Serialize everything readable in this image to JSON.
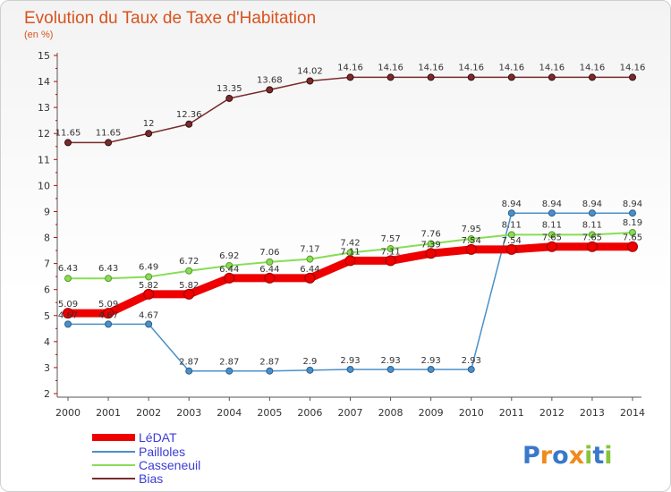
{
  "chart_data": {
    "type": "line",
    "title": "Evolution du Taux de Taxe d'Habitation",
    "subtitle": "(en %)",
    "x": [
      "2000",
      "2001",
      "2002",
      "2003",
      "2004",
      "2005",
      "2006",
      "2007",
      "2008",
      "2009",
      "2010",
      "2011",
      "2012",
      "2013",
      "2014"
    ],
    "ylim": [
      2,
      15
    ],
    "yticks": [
      2,
      3,
      4,
      5,
      6,
      7,
      8,
      9,
      10,
      11,
      12,
      13,
      14,
      15
    ],
    "grid": false,
    "legend_position": "bottom-left",
    "series": [
      {
        "name": "LéDAT",
        "color": "#ee0000",
        "values": [
          5.09,
          5.09,
          5.82,
          5.82,
          6.44,
          6.44,
          6.44,
          7.11,
          7.11,
          7.39,
          7.54,
          7.54,
          7.65,
          7.65,
          7.65
        ]
      },
      {
        "name": "Pailloles",
        "color": "#4a90c8",
        "values": [
          4.67,
          4.67,
          4.67,
          2.87,
          2.87,
          2.87,
          2.9,
          2.93,
          2.93,
          2.93,
          2.93,
          8.94,
          8.94,
          8.94,
          8.94
        ]
      },
      {
        "name": "Casseneuil",
        "color": "#88dd55",
        "values": [
          6.43,
          6.43,
          6.49,
          6.72,
          6.92,
          7.06,
          7.17,
          7.42,
          7.57,
          7.76,
          7.95,
          8.11,
          8.11,
          8.11,
          8.19
        ]
      },
      {
        "name": "Bias",
        "color": "#7a2b2b",
        "values": [
          11.65,
          11.65,
          12,
          12.36,
          13.35,
          13.68,
          14.02,
          14.16,
          14.16,
          14.16,
          14.16,
          14.16,
          14.16,
          14.16,
          14.16
        ]
      }
    ],
    "data_labels": {
      "LéDAT": [
        "5.09",
        "5.09",
        "5.82",
        "5.82",
        "6.44",
        "6.44",
        "6.44",
        "7.11",
        "7.11",
        "7.39",
        "7.54",
        "7.54",
        "7.65",
        "7.65",
        "7.65"
      ],
      "Pailloles": [
        "4.67",
        "4.67",
        "4.67",
        "2.87",
        "2.87",
        "2.87",
        "2.9",
        "2.93",
        "2.93",
        "2.93",
        "2.93",
        "8.94",
        "8.94",
        "8.94",
        "8.94"
      ],
      "Casseneuil": [
        "6.43",
        "6.43",
        "6.49",
        "6.72",
        "6.92",
        "7.06",
        "7.17",
        "7.42",
        "7.57",
        "7.76",
        "7.95",
        "8.11",
        "8.11",
        "8.11",
        "8.19"
      ],
      "Bias": [
        "11.65",
        "11.65",
        "12",
        "12.36",
        "13.35",
        "13.68",
        "14.02",
        "14.16",
        "14.16",
        "14.16",
        "14.16",
        "14.16",
        "14.16",
        "14.16",
        "14.16"
      ]
    }
  },
  "brand": {
    "letters": [
      "P",
      "r",
      "o",
      "x",
      "i",
      "t",
      "i"
    ],
    "colors": [
      "#3a78c8",
      "#f08a1c",
      "#3a78c8",
      "#f08a1c",
      "#8ac43f",
      "#3a78c8",
      "#8ac43f"
    ]
  }
}
